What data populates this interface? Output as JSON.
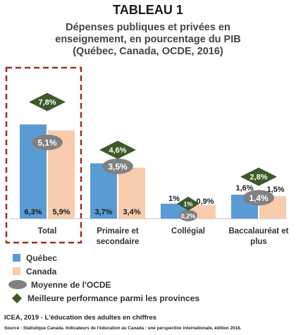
{
  "header": {
    "title": "TABLEAU 1",
    "subtitle_lines": [
      "Dépenses publiques et privées en",
      "enseignement, en pourcentage du PIB",
      "(Québec, Canada, OCDE, 2016)"
    ]
  },
  "chart_data": {
    "type": "bar",
    "categories": [
      [
        "Total"
      ],
      [
        "Primaire et",
        "secondaire"
      ],
      [
        "Collégial"
      ],
      [
        "Baccalauréat et",
        "plus"
      ]
    ],
    "series": [
      {
        "name": "Québec",
        "values": [
          6.3,
          3.7,
          1.0,
          1.6
        ],
        "labels": [
          "6,3%",
          "3,7%",
          "1%",
          "1,6%"
        ],
        "color": "#5b9bd5"
      },
      {
        "name": "Canada",
        "values": [
          5.9,
          3.4,
          0.9,
          1.5
        ],
        "labels": [
          "5,9%",
          "3,4%",
          "0,9%",
          "1,5%"
        ],
        "color": "#f8cbad"
      }
    ],
    "oecd_average": {
      "name": "Moyenne de l'OCDE",
      "values": [
        5.1,
        3.5,
        0.2,
        1.4
      ],
      "labels": [
        "5,1%",
        "3,5%",
        "0,2%",
        "1,4%"
      ],
      "color": "#808080"
    },
    "best_province": {
      "name": "Meilleure performance parmi les provinces",
      "values": [
        7.8,
        4.6,
        1.0,
        2.8
      ],
      "labels": [
        "7,8%",
        "4,6%",
        "1%",
        "2,8%"
      ],
      "color": "#3d5a2a"
    },
    "highlighted_category": "Total",
    "highlight_color": "#a52a2a",
    "ylim": [
      0,
      9
    ],
    "grid": false
  },
  "legend": [
    {
      "label": "Québec",
      "marker": "square",
      "color": "#5b9bd5"
    },
    {
      "label": "Canada",
      "marker": "square",
      "color": "#f8cbad"
    },
    {
      "label": "Moyenne de l'OCDE",
      "marker": "ellipse",
      "color": "#808080"
    },
    {
      "label": "Meilleure performance parmi les provinces",
      "marker": "diamond",
      "color": "#3d5a2a"
    }
  ],
  "footer": {
    "credit": "ICEA, 2019 - L'éducation des adultes en chiffres",
    "source": "Source : Statistique Canada. Indicateurs de l'éducation au Canada : une perspective internationale, édition 2018."
  }
}
